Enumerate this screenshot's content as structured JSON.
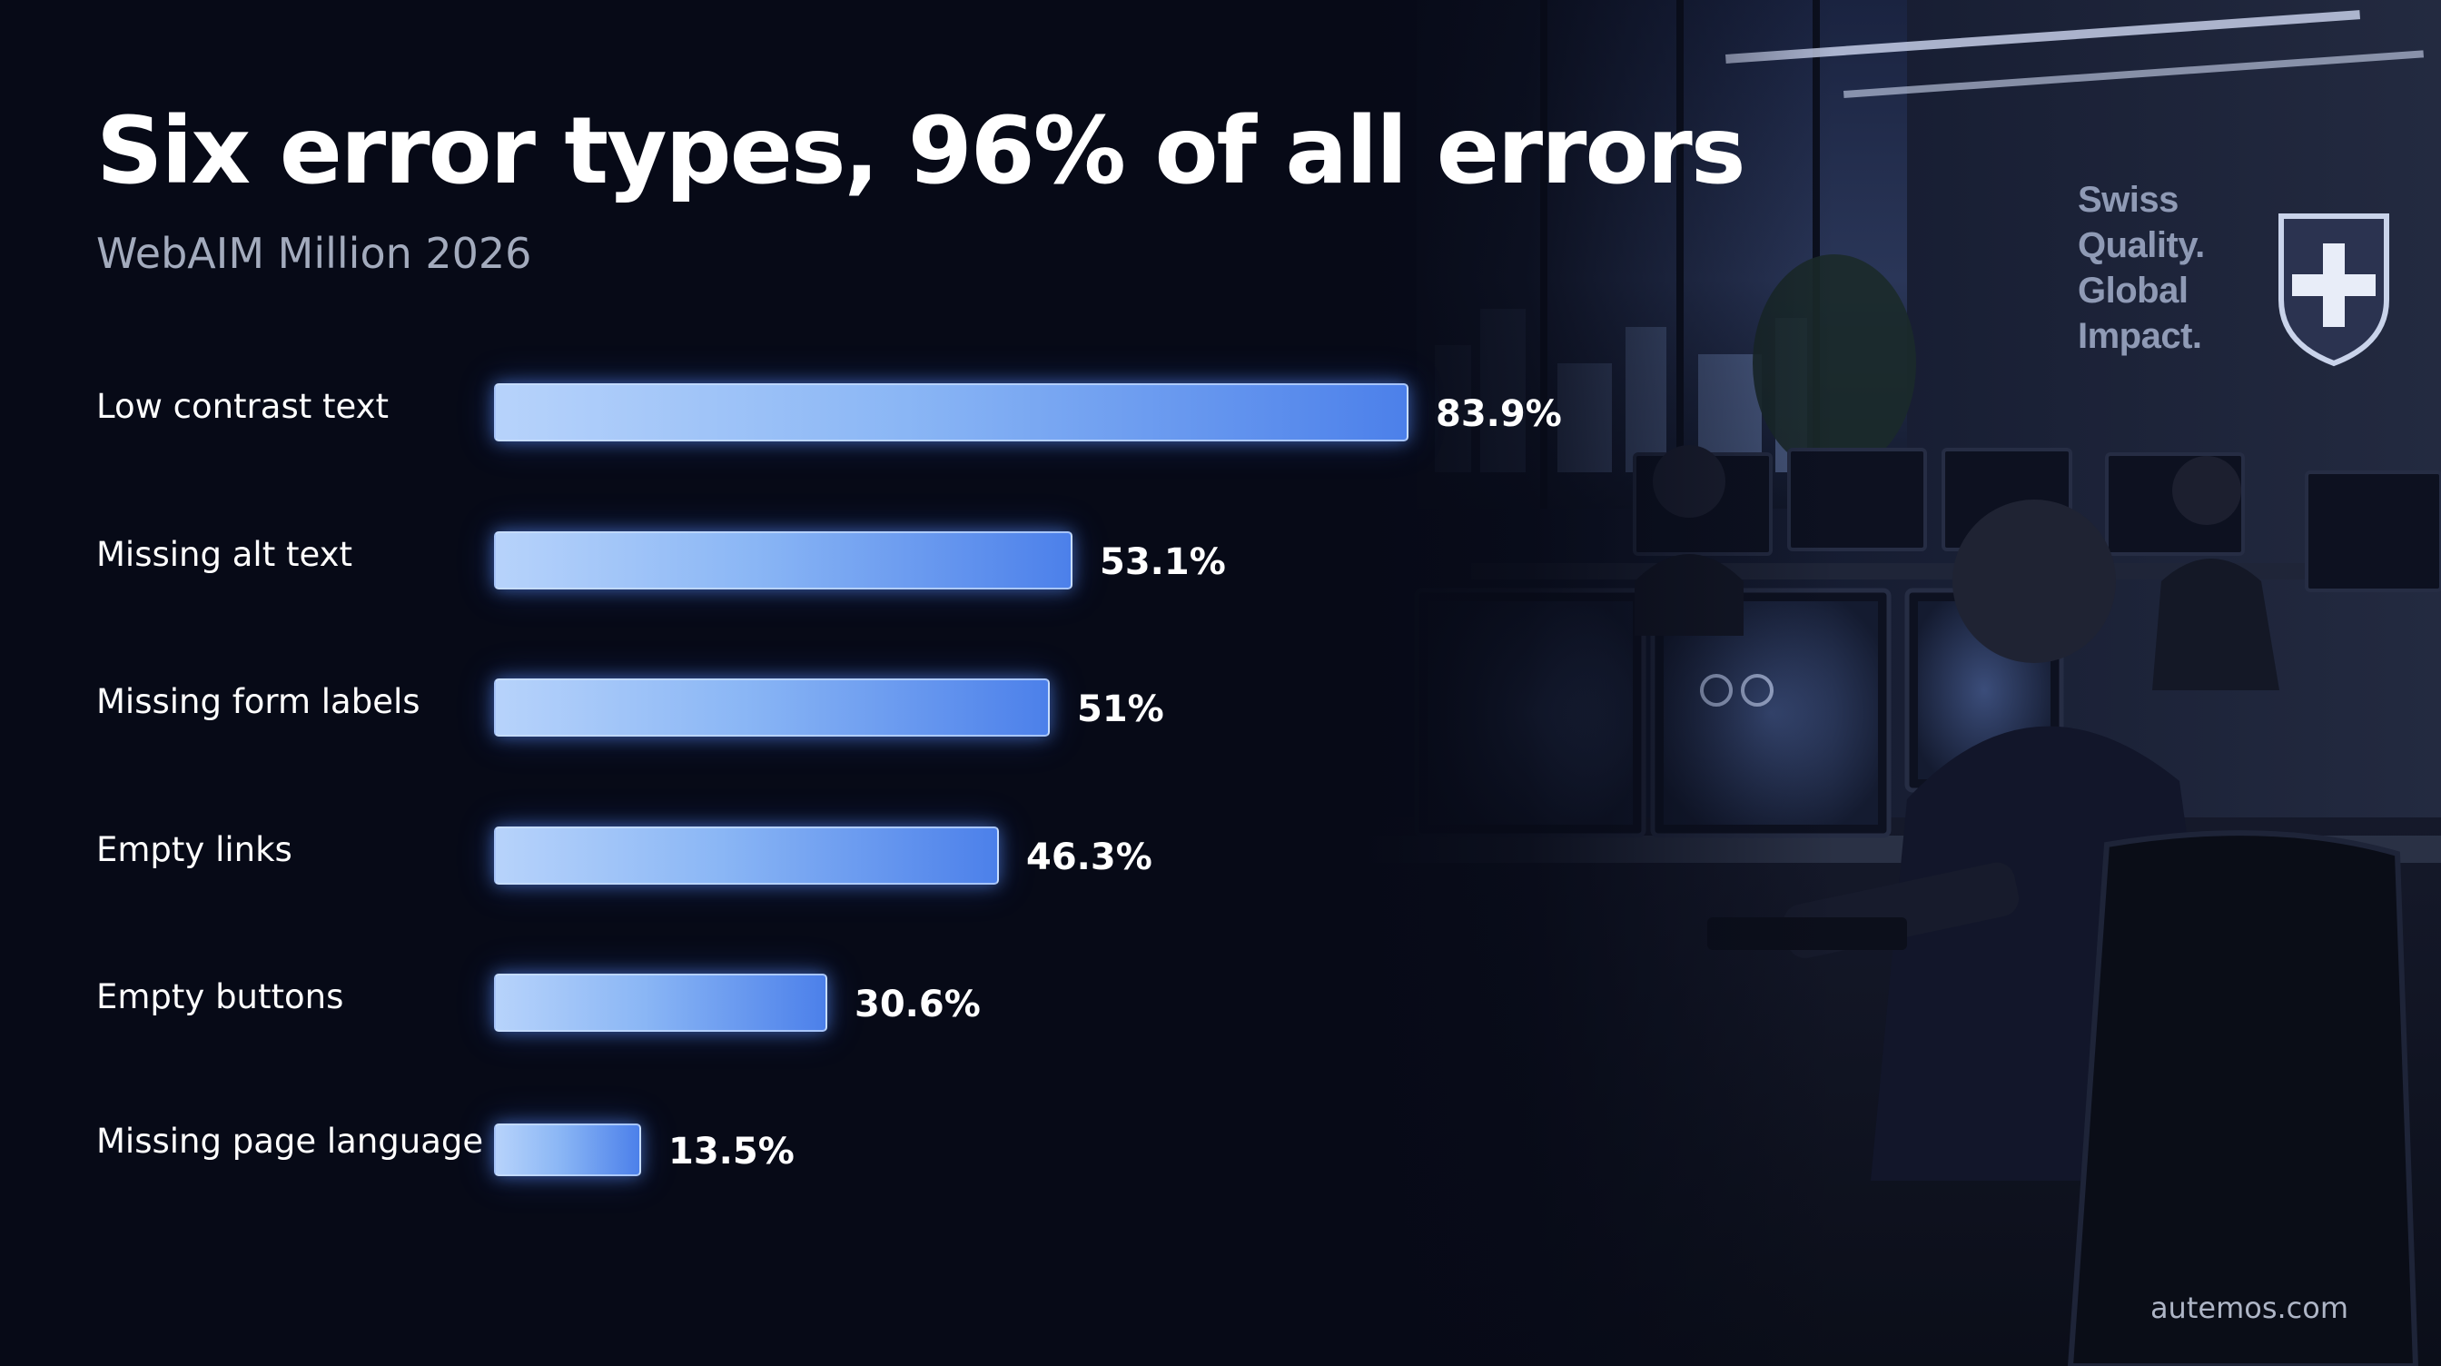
{
  "header": {
    "title": "Six error types, 96% of all errors",
    "subtitle": "WebAIM Million 2026"
  },
  "chart_data": {
    "type": "bar",
    "orientation": "horizontal",
    "categories": [
      "Low contrast text",
      "Missing alt text",
      "Missing form labels",
      "Empty links",
      "Empty buttons",
      "Missing page language"
    ],
    "values": [
      83.9,
      53.1,
      51,
      46.3,
      30.6,
      13.5
    ],
    "value_labels": [
      "83.9%",
      "53.1%",
      "51%",
      "46.3%",
      "30.6%",
      "13.5%"
    ],
    "xlim": [
      0,
      100
    ],
    "grid": false,
    "bar_color_start": "#b7d3fb",
    "bar_color_end": "#4c80ea"
  },
  "background_photo": {
    "wall_text": [
      "Swiss",
      "Quality.",
      "Global",
      "Impact."
    ],
    "emblem": "swiss-cross-shield-icon"
  },
  "footer": {
    "brand": "autemos.com"
  },
  "colors": {
    "background": "#070a17",
    "title": "#ffffff",
    "subtitle": "#a3abbd",
    "bar_glow": "#5d94ff"
  }
}
